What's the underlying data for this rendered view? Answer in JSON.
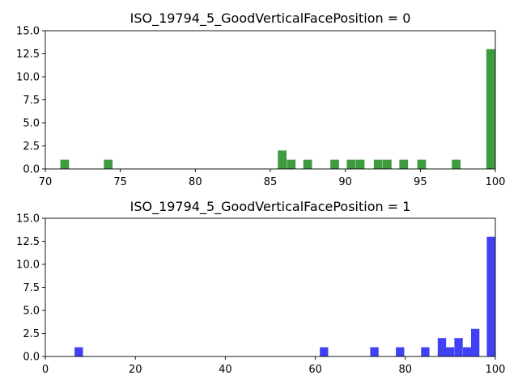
{
  "chart_data": [
    {
      "type": "bar",
      "title": "ISO_19794_5_GoodVerticalFacePosition = 0",
      "color": "#3f9b3f",
      "xlim": [
        70,
        100
      ],
      "ylim": [
        0,
        15
      ],
      "xticks": [
        70,
        75,
        80,
        85,
        90,
        95,
        100
      ],
      "yticks": [
        "0.0",
        "2.5",
        "5.0",
        "7.5",
        "10.0",
        "12.5",
        "15.0"
      ],
      "bin_width": 0.58,
      "bins": [
        {
          "x": 71.0,
          "count": 1
        },
        {
          "x": 73.9,
          "count": 1
        },
        {
          "x": 85.5,
          "count": 2
        },
        {
          "x": 86.1,
          "count": 1
        },
        {
          "x": 87.2,
          "count": 1
        },
        {
          "x": 89.0,
          "count": 1
        },
        {
          "x": 90.1,
          "count": 1
        },
        {
          "x": 90.7,
          "count": 1
        },
        {
          "x": 91.9,
          "count": 1
        },
        {
          "x": 92.5,
          "count": 1
        },
        {
          "x": 93.6,
          "count": 1
        },
        {
          "x": 94.8,
          "count": 1
        },
        {
          "x": 97.1,
          "count": 1
        },
        {
          "x": 99.4,
          "count": 13
        }
      ]
    },
    {
      "type": "bar",
      "title": "ISO_19794_5_GoodVerticalFacePosition = 1",
      "color": "#4040f4",
      "xlim": [
        0,
        100
      ],
      "ylim": [
        0,
        15
      ],
      "xticks": [
        0,
        20,
        40,
        60,
        80,
        100
      ],
      "yticks": [
        "0.0",
        "2.5",
        "5.0",
        "7.5",
        "10.0",
        "12.5",
        "15.0"
      ],
      "bin_width": 1.86,
      "bins": [
        {
          "x": 6.5,
          "count": 1
        },
        {
          "x": 61.0,
          "count": 1
        },
        {
          "x": 72.2,
          "count": 1
        },
        {
          "x": 77.9,
          "count": 1
        },
        {
          "x": 83.5,
          "count": 1
        },
        {
          "x": 87.2,
          "count": 2
        },
        {
          "x": 89.0,
          "count": 1
        },
        {
          "x": 90.9,
          "count": 2
        },
        {
          "x": 92.8,
          "count": 1
        },
        {
          "x": 94.6,
          "count": 3
        },
        {
          "x": 98.1,
          "count": 13
        }
      ]
    }
  ]
}
